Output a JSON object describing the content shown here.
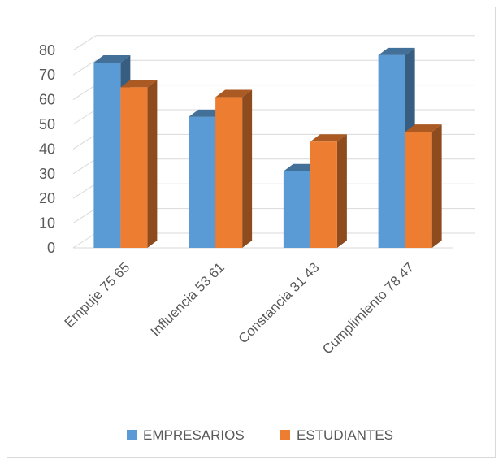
{
  "chart_data": {
    "type": "bar",
    "categories": [
      "Empuje 75  65",
      "Influencia 53  61",
      "Constancia 31  43",
      "Cumplimiento 78  47"
    ],
    "series": [
      {
        "name": "EMPRESARIOS",
        "values": [
          75,
          53,
          31,
          78
        ],
        "color": "#5b9bd5"
      },
      {
        "name": "ESTUDIANTES",
        "values": [
          65,
          61,
          43,
          47
        ],
        "color": "#ed7d31"
      }
    ],
    "yticks": [
      "0",
      "10",
      "20",
      "30",
      "40",
      "50",
      "60",
      "70",
      "80"
    ],
    "ylim": [
      0,
      80
    ],
    "grid": true,
    "legend": "bottom"
  }
}
